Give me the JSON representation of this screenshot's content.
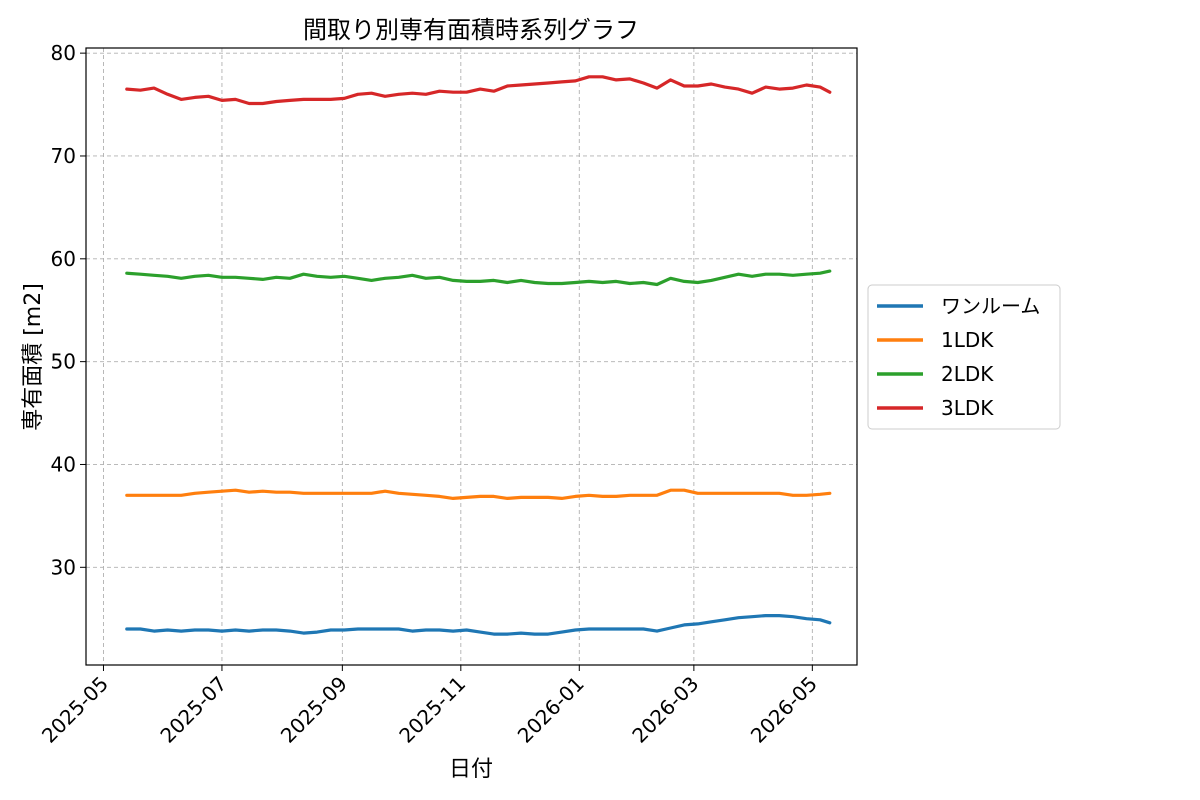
{
  "chart_data": {
    "type": "line",
    "title": "間取り別専有面積時系列グラフ",
    "xlabel": "日付",
    "ylabel": "専有面積 [m2]",
    "ylim": [
      20.5,
      80.5
    ],
    "xlim": [
      "2025-04-22",
      "2026-05-24"
    ],
    "x_ticks": [
      "2025-05-01",
      "2025-07-01",
      "2025-09-01",
      "2025-11-01",
      "2026-01-01",
      "2026-03-01",
      "2026-05-01"
    ],
    "x_tick_labels": [
      "2025-05",
      "2025-07",
      "2025-09",
      "2025-11",
      "2026-01",
      "2026-03",
      "2026-05"
    ],
    "y_ticks": [
      30,
      40,
      50,
      60,
      70,
      80
    ],
    "y_tick_labels": [
      "30",
      "40",
      "50",
      "60",
      "70",
      "80"
    ],
    "grid": true,
    "legend_position": "right-outside",
    "x": [
      "2025-05-13",
      "2025-05-20",
      "2025-05-27",
      "2025-06-03",
      "2025-06-10",
      "2025-06-17",
      "2025-06-24",
      "2025-07-01",
      "2025-07-08",
      "2025-07-15",
      "2025-07-22",
      "2025-07-29",
      "2025-08-05",
      "2025-08-12",
      "2025-08-19",
      "2025-08-26",
      "2025-09-02",
      "2025-09-09",
      "2025-09-16",
      "2025-09-23",
      "2025-09-30",
      "2025-10-07",
      "2025-10-14",
      "2025-10-21",
      "2025-10-28",
      "2025-11-04",
      "2025-11-11",
      "2025-11-18",
      "2025-11-25",
      "2025-12-02",
      "2025-12-09",
      "2025-12-16",
      "2025-12-23",
      "2025-12-30",
      "2026-01-06",
      "2026-01-13",
      "2026-01-20",
      "2026-01-27",
      "2026-02-03",
      "2026-02-10",
      "2026-02-17",
      "2026-02-24",
      "2026-03-03",
      "2026-03-10",
      "2026-03-17",
      "2026-03-24",
      "2026-03-31",
      "2026-04-07",
      "2026-04-14",
      "2026-04-21",
      "2026-04-28",
      "2026-05-05",
      "2026-05-10"
    ],
    "series": [
      {
        "name": "ワンルーム",
        "color": "#1f77b4",
        "values": [
          24.0,
          24.0,
          23.8,
          23.9,
          23.8,
          23.9,
          23.9,
          23.8,
          23.9,
          23.8,
          23.9,
          23.9,
          23.8,
          23.6,
          23.7,
          23.9,
          23.9,
          24.0,
          24.0,
          24.0,
          24.0,
          23.8,
          23.9,
          23.9,
          23.8,
          23.9,
          23.7,
          23.5,
          23.5,
          23.6,
          23.5,
          23.5,
          23.7,
          23.9,
          24.0,
          24.0,
          24.0,
          24.0,
          24.0,
          23.8,
          24.1,
          24.4,
          24.5,
          24.7,
          24.9,
          25.1,
          25.2,
          25.3,
          25.3,
          25.2,
          25.0,
          24.9,
          24.6
        ]
      },
      {
        "name": "1LDK",
        "color": "#ff7f0e",
        "values": [
          37.0,
          37.0,
          37.0,
          37.0,
          37.0,
          37.2,
          37.3,
          37.4,
          37.5,
          37.3,
          37.4,
          37.3,
          37.3,
          37.2,
          37.2,
          37.2,
          37.2,
          37.2,
          37.2,
          37.4,
          37.2,
          37.1,
          37.0,
          36.9,
          36.7,
          36.8,
          36.9,
          36.9,
          36.7,
          36.8,
          36.8,
          36.8,
          36.7,
          36.9,
          37.0,
          36.9,
          36.9,
          37.0,
          37.0,
          37.0,
          37.5,
          37.5,
          37.2,
          37.2,
          37.2,
          37.2,
          37.2,
          37.2,
          37.2,
          37.0,
          37.0,
          37.1,
          37.2
        ]
      },
      {
        "name": "2LDK",
        "color": "#2ca02c",
        "values": [
          58.6,
          58.5,
          58.4,
          58.3,
          58.1,
          58.3,
          58.4,
          58.2,
          58.2,
          58.1,
          58.0,
          58.2,
          58.1,
          58.5,
          58.3,
          58.2,
          58.3,
          58.1,
          57.9,
          58.1,
          58.2,
          58.4,
          58.1,
          58.2,
          57.9,
          57.8,
          57.8,
          57.9,
          57.7,
          57.9,
          57.7,
          57.6,
          57.6,
          57.7,
          57.8,
          57.7,
          57.8,
          57.6,
          57.7,
          57.5,
          58.1,
          57.8,
          57.7,
          57.9,
          58.2,
          58.5,
          58.3,
          58.5,
          58.5,
          58.4,
          58.5,
          58.6,
          58.8
        ]
      },
      {
        "name": "3LDK",
        "color": "#d62728",
        "values": [
          76.5,
          76.4,
          76.6,
          76.0,
          75.5,
          75.7,
          75.8,
          75.4,
          75.5,
          75.1,
          75.1,
          75.3,
          75.4,
          75.5,
          75.5,
          75.5,
          75.6,
          76.0,
          76.1,
          75.8,
          76.0,
          76.1,
          76.0,
          76.3,
          76.2,
          76.2,
          76.5,
          76.3,
          76.8,
          76.9,
          77.0,
          77.1,
          77.2,
          77.3,
          77.7,
          77.7,
          77.4,
          77.5,
          77.1,
          76.6,
          77.4,
          76.8,
          76.8,
          77.0,
          76.7,
          76.5,
          76.1,
          76.7,
          76.5,
          76.6,
          76.9,
          76.7,
          76.2
        ]
      }
    ]
  }
}
